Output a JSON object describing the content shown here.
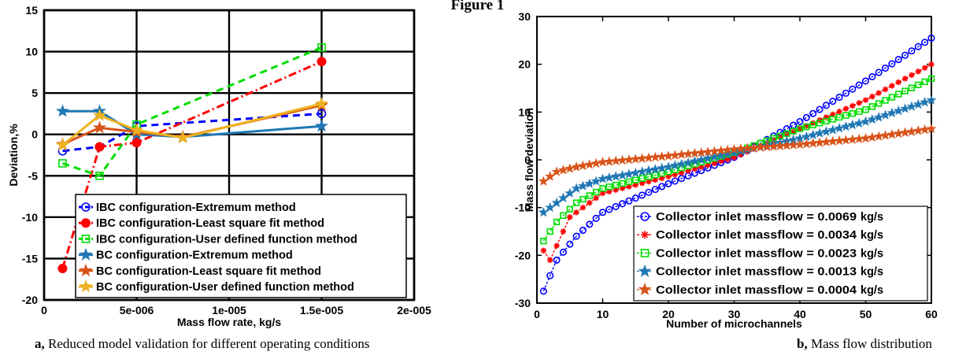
{
  "figure_title": "Figure 1",
  "captions": {
    "a": {
      "letter": "a,",
      "text": " Reduced model validation for different operating conditions"
    },
    "b": {
      "letter": "b,",
      "text": " Mass flow distribution"
    }
  },
  "chart_data": [
    {
      "type": "line",
      "xlabel": "Mass flow rate, kg/s",
      "ylabel": "Deviation,%",
      "xlim": [
        0,
        2e-05
      ],
      "ylim": [
        -20,
        15
      ],
      "xtick_labels": [
        "0",
        "5e-006",
        "1e-005",
        "1.5e-005",
        "2e-005"
      ],
      "ytick_labels": [
        "-20",
        "-15",
        "-10",
        "-5",
        "0",
        "5",
        "10",
        "15"
      ],
      "grid": true,
      "legend_position": "bottom-right",
      "series": [
        {
          "name": "IBC configuration-Extremum method",
          "color": "#0000ff",
          "marker": "circle-open",
          "line": "dashed",
          "x": [
            1e-06,
            3e-06,
            5e-06,
            1.5e-05
          ],
          "y": [
            -2,
            -1.5,
            1.0,
            2.5
          ]
        },
        {
          "name": "IBC configuration-Least square fit method",
          "color": "#ff0000",
          "marker": "circle-filled",
          "line": "dashdot",
          "x": [
            1e-06,
            3e-06,
            5e-06,
            1.5e-05
          ],
          "y": [
            -16.2,
            -1.5,
            -1.0,
            8.8
          ]
        },
        {
          "name": "IBC configuration-User defined function method",
          "color": "#00dd00",
          "marker": "square-open",
          "line": "dashed",
          "x": [
            1e-06,
            3e-06,
            5e-06,
            1.5e-05
          ],
          "y": [
            -3.5,
            -5.0,
            1.2,
            10.5
          ]
        },
        {
          "name": "BC configuration-Extremum method",
          "color": "#1f77b4",
          "marker": "star",
          "line": "solid",
          "x": [
            1e-06,
            3e-06,
            5e-06,
            7.5e-06,
            1.5e-05
          ],
          "y": [
            2.8,
            2.8,
            0.0,
            -0.3,
            1.0
          ]
        },
        {
          "name": "BC configuration-Least square fit method",
          "color": "#d95319",
          "marker": "star",
          "line": "solid",
          "x": [
            1e-06,
            3e-06,
            5e-06,
            7.5e-06,
            1.5e-05
          ],
          "y": [
            -1.2,
            0.8,
            0.3,
            -0.3,
            3.5
          ]
        },
        {
          "name": "BC configuration-User defined function method",
          "color": "#edb120",
          "marker": "star",
          "line": "solid",
          "x": [
            1e-06,
            3e-06,
            5e-06,
            7.5e-06,
            1.5e-05
          ],
          "y": [
            -1.3,
            2.3,
            0.5,
            -0.4,
            3.7
          ]
        }
      ]
    },
    {
      "type": "line",
      "xlabel": "Number of microchannels",
      "ylabel": "Mass flow deviation",
      "xlim": [
        0,
        60
      ],
      "ylim": [
        -30,
        30
      ],
      "xtick_labels": [
        "0",
        "10",
        "20",
        "30",
        "40",
        "50",
        "60"
      ],
      "ytick_labels": [
        "-30",
        "-20",
        "-10",
        "0",
        "10",
        "20",
        "30"
      ],
      "grid": false,
      "legend_position": "bottom-right",
      "series": [
        {
          "name": "Collector inlet massflow = 0.0069",
          "unit": "kg/s",
          "color": "#0000ff",
          "marker": "circle-open",
          "x_start": 1,
          "x_end": 60,
          "y_at": [
            [
              1,
              -27.5
            ],
            [
              3,
              -21
            ],
            [
              6,
              -16
            ],
            [
              10,
              -11
            ],
            [
              20,
              -5
            ],
            [
              30,
              0.5
            ],
            [
              40,
              8
            ],
            [
              50,
              16.5
            ],
            [
              60,
              25.5
            ]
          ]
        },
        {
          "name": "Collector inlet massflow = 0.0034",
          "unit": "kg/s",
          "color": "#ff0000",
          "marker": "asterisk",
          "x_start": 1,
          "x_end": 60,
          "y_at": [
            [
              1,
              -19
            ],
            [
              2,
              -21
            ],
            [
              5,
              -12
            ],
            [
              10,
              -7
            ],
            [
              20,
              -3.5
            ],
            [
              30,
              0.5
            ],
            [
              40,
              6.5
            ],
            [
              50,
              12.5
            ],
            [
              60,
              20
            ]
          ]
        },
        {
          "name": "Collector inlet massflow = 0.0023",
          "unit": "kg/s",
          "color": "#00dd00",
          "marker": "square-open",
          "x_start": 1,
          "x_end": 60,
          "y_at": [
            [
              1,
              -17
            ],
            [
              3,
              -13
            ],
            [
              6,
              -9
            ],
            [
              10,
              -6
            ],
            [
              20,
              -2.5
            ],
            [
              30,
              1.5
            ],
            [
              40,
              6.5
            ],
            [
              50,
              10.5
            ],
            [
              60,
              17
            ]
          ]
        },
        {
          "name": "Collector inlet massflow = 0.0013",
          "unit": "kg/s",
          "color": "#1f77b4",
          "marker": "star",
          "x_start": 1,
          "x_end": 60,
          "y_at": [
            [
              1,
              -11
            ],
            [
              3,
              -9
            ],
            [
              6,
              -6
            ],
            [
              10,
              -4
            ],
            [
              20,
              -1.5
            ],
            [
              30,
              1.5
            ],
            [
              40,
              4.5
            ],
            [
              50,
              8
            ],
            [
              60,
              12.5
            ]
          ]
        },
        {
          "name": "Collector inlet massflow = 0.0004",
          "unit": "kg/s",
          "color": "#d95319",
          "marker": "star",
          "x_start": 1,
          "x_end": 60,
          "y_at": [
            [
              1,
              -4.5
            ],
            [
              3,
              -2.5
            ],
            [
              6,
              -1.5
            ],
            [
              10,
              -0.5
            ],
            [
              20,
              0.8
            ],
            [
              30,
              2.2
            ],
            [
              40,
              3.2
            ],
            [
              50,
              4.5
            ],
            [
              60,
              6.5
            ]
          ]
        }
      ]
    }
  ]
}
